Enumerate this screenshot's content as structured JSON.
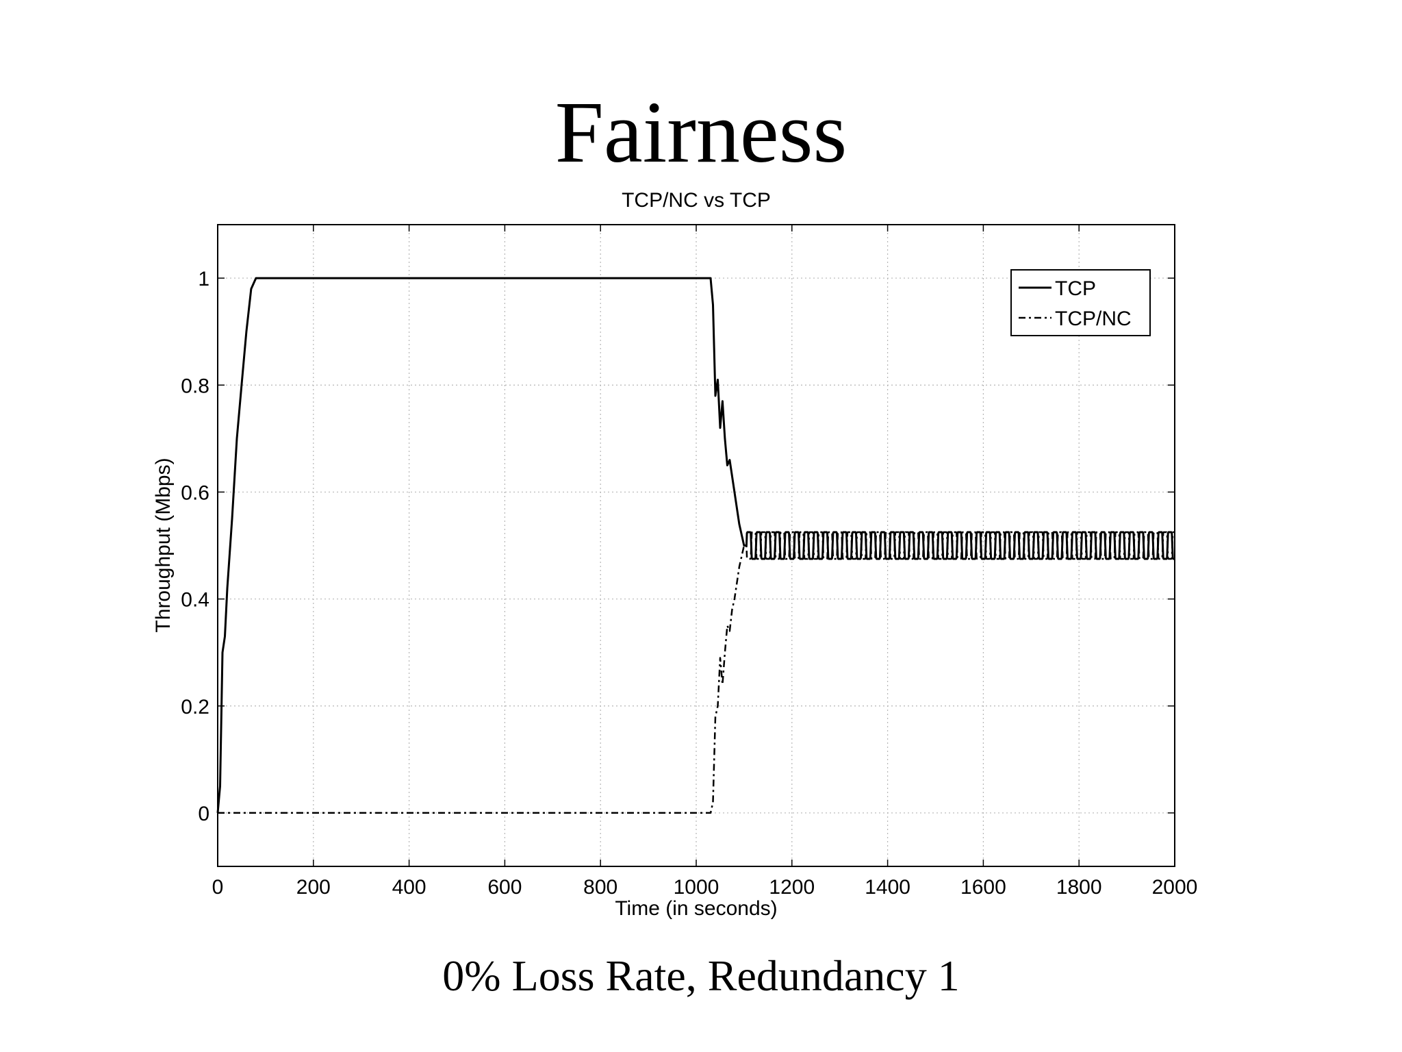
{
  "slide": {
    "title": "Fairness",
    "caption": "0% Loss Rate, Redundancy 1"
  },
  "chart_data": {
    "type": "line",
    "title": "TCP/NC vs TCP",
    "xlabel": "Time (in seconds)",
    "ylabel": "Throughput (Mbps)",
    "xlim": [
      0,
      2000
    ],
    "ylim": [
      -0.1,
      1.1
    ],
    "xticks": [
      0,
      200,
      400,
      600,
      800,
      1000,
      1200,
      1400,
      1600,
      1800,
      2000
    ],
    "yticks": [
      0,
      0.2,
      0.4,
      0.6,
      0.8,
      1
    ],
    "xtick_labels": [
      "0",
      "200",
      "400",
      "600",
      "800",
      "1000",
      "1200",
      "1400",
      "1600",
      "1800",
      "2000"
    ],
    "ytick_labels": [
      "0",
      "0.2",
      "0.4",
      "0.6",
      "0.8",
      "1"
    ],
    "grid": true,
    "legend_position": "top-right",
    "series": [
      {
        "name": "TCP",
        "line_style": "solid",
        "x": [
          0,
          5,
          10,
          15,
          20,
          30,
          40,
          50,
          60,
          70,
          80,
          100,
          200,
          300,
          400,
          500,
          600,
          700,
          800,
          900,
          1000,
          1030,
          1035,
          1040,
          1045,
          1050,
          1055,
          1060,
          1065,
          1070,
          1075,
          1080,
          1085,
          1090,
          1095,
          1100,
          1105
        ],
        "y": [
          0,
          0.05,
          0.3,
          0.33,
          0.42,
          0.55,
          0.7,
          0.8,
          0.9,
          0.98,
          1.0,
          1.0,
          1.0,
          1.0,
          1.0,
          1.0,
          1.0,
          1.0,
          1.0,
          1.0,
          1.0,
          1.0,
          0.95,
          0.78,
          0.81,
          0.72,
          0.77,
          0.7,
          0.65,
          0.66,
          0.63,
          0.6,
          0.57,
          0.54,
          0.52,
          0.5,
          0.5
        ],
        "oscillation": {
          "from": 1105,
          "to": 2000,
          "min": 0.475,
          "max": 0.525,
          "period": 20
        }
      },
      {
        "name": "TCP/NC",
        "line_style": "dash-dot",
        "x": [
          0,
          1000,
          1030,
          1035,
          1040,
          1045,
          1050,
          1055,
          1060,
          1065,
          1070,
          1075,
          1080,
          1085,
          1090,
          1095,
          1100,
          1105
        ],
        "y": [
          0,
          0,
          0,
          0.02,
          0.18,
          0.2,
          0.29,
          0.24,
          0.3,
          0.35,
          0.34,
          0.38,
          0.4,
          0.43,
          0.46,
          0.48,
          0.5,
          0.5
        ],
        "oscillation": {
          "from": 1105,
          "to": 2000,
          "min": 0.475,
          "max": 0.525,
          "period": 20,
          "phase": 0.5
        }
      }
    ]
  }
}
